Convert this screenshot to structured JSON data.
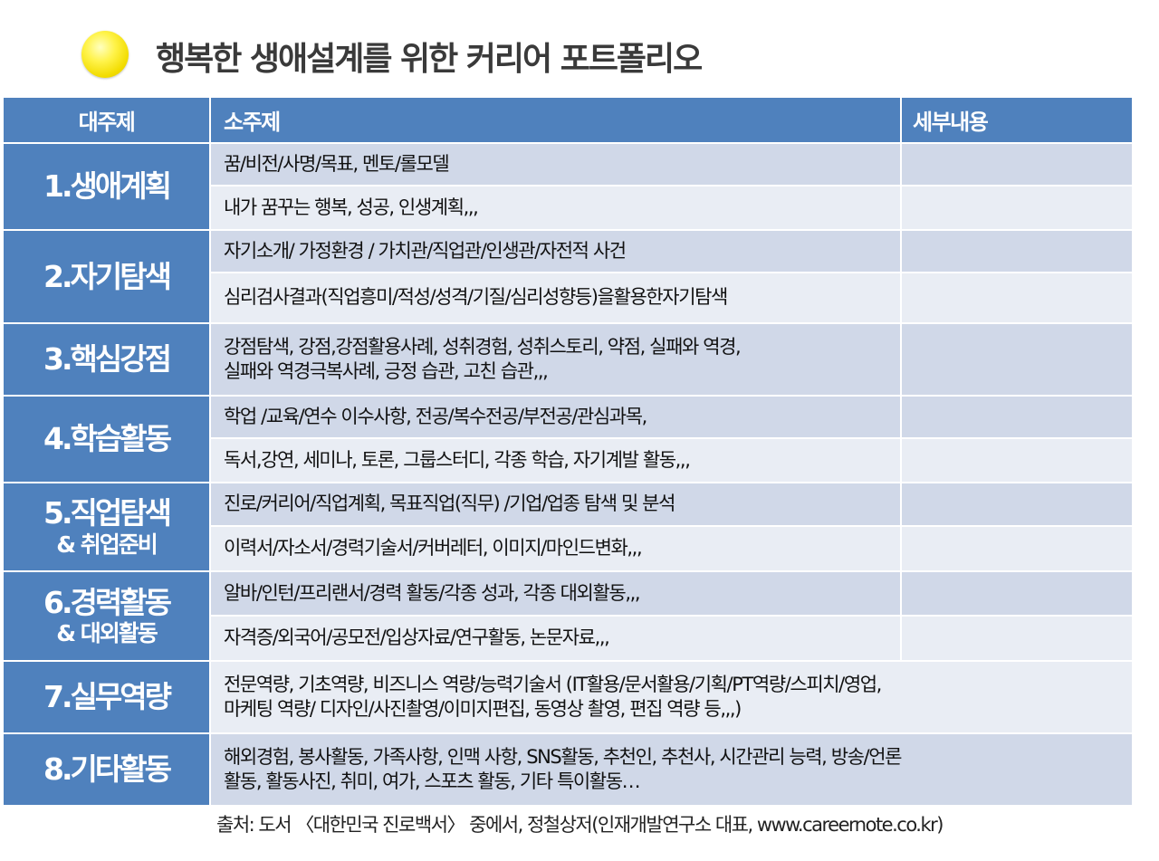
{
  "title": "행복한 생애설계를 위한 커리어 포트폴리오",
  "columns": [
    "대주제",
    "소주제",
    "세부내용"
  ],
  "groups": [
    {
      "main": "1.생애계획",
      "main2": "",
      "subs": [
        "꿈/비전/사명/목표, 멘토/롤모델",
        "내가 꿈꾸는 행복, 성공, 인생계획,,,"
      ]
    },
    {
      "main": "2.자기탐색",
      "main2": "",
      "subs": [
        "자기소개/ 가정환경 / 가치관/직업관/인생관/자전적 사건",
        "심리검사결과(직업흥미/적성/성격/기질/심리성향등)을활용한자기탐색"
      ]
    },
    {
      "main": "3.핵심강점",
      "main2": "",
      "subs": [
        "강점탐색, 강점,강점활용사례, 성취경험, 성취스토리, 약점, 실패와 역경,",
        "실패와 역경극복사례, 긍정 습관, 고친 습관,,,"
      ]
    },
    {
      "main": "4.학습활동",
      "main2": "",
      "subs": [
        "학업 /교육/연수 이수사항, 전공/복수전공/부전공/관심과목,",
        "독서,강연, 세미나, 토론, 그룹스터디, 각종 학습, 자기계발 활동,,,"
      ]
    },
    {
      "main": "5.직업탐색",
      "main2": "& 취업준비",
      "subs": [
        "진로/커리어/직업계획, 목표직업(직무) /기업/업종 탐색 및 분석",
        "이력서/자소서/경력기술서/커버레터, 이미지/마인드변화,,,"
      ]
    },
    {
      "main": "6.경력활동",
      "main2": "& 대외활동",
      "subs": [
        "알바/인턴/프리랜서/경력 활동/각종 성과, 각종 대외활동,,,",
        "자격증/외국어/공모전/입상자료/연구활동, 논문자료,,,"
      ]
    },
    {
      "main": "7.실무역량",
      "main2": "",
      "subs": [
        "전문역량, 기초역량, 비즈니스 역량/능력기술서 (IT활용/문서활용/기획/PT역량/스피치/영업,",
        "마케팅 역량/ 디자인/사진촬영/이미지편집, 동영상 촬영, 편집 역량 등,,,)"
      ]
    },
    {
      "main": "8.기타활동",
      "main2": "",
      "subs": [
        "해외경험, 봉사활동, 가족사항, 인맥 사항, SNS활동, 추천인, 추천사, 시간관리 능력, 방송/언론",
        "활동, 활동사진, 취미, 여가, 스포츠 활동, 기타 특이활동…"
      ]
    }
  ],
  "source": "출처: 도서 〈대한민국 진로백서〉 중에서, 정철상저(인재개발연구소 대표, www.careernote.co.kr)",
  "colors": {
    "header_blue": "#4f81bd",
    "row_dark": "#d0d8e8",
    "row_light": "#e9edf4",
    "bullet": "#fff34a"
  }
}
